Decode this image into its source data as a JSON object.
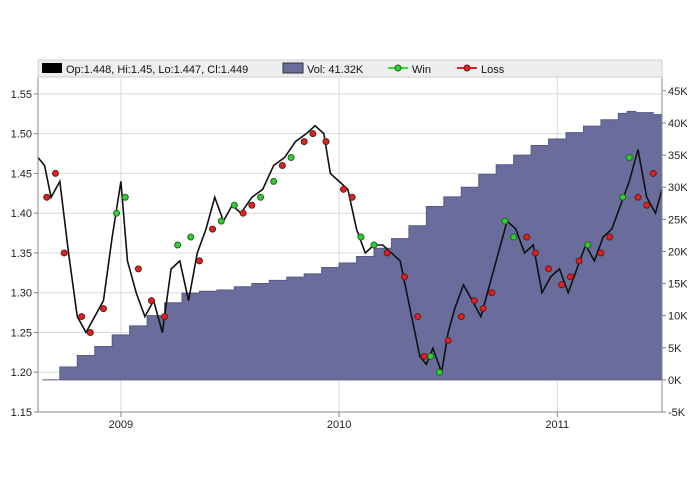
{
  "chart_data": {
    "type": "line",
    "legend": {
      "placement": "top",
      "ohlc_label": "Op:1.448, Hi:1.45, Lo:1.447, Cl:1.449",
      "volume_label": "Vol: 41.32K",
      "win_label": "Win",
      "loss_label": "Loss"
    },
    "x_ticks": [
      "2009",
      "2010",
      "2011"
    ],
    "x_tick_values": [
      2009.0,
      2010.0,
      2011.0
    ],
    "xlim": [
      2008.62,
      2011.48
    ],
    "y_left": {
      "ticks": [
        "1.15",
        "1.20",
        "1.25",
        "1.30",
        "1.35",
        "1.40",
        "1.45",
        "1.50",
        "1.55"
      ],
      "tick_values": [
        1.15,
        1.2,
        1.25,
        1.3,
        1.35,
        1.4,
        1.45,
        1.5,
        1.55
      ],
      "ylim": [
        1.15,
        1.57
      ]
    },
    "y_right": {
      "ticks": [
        "-5K",
        "0K",
        "5K",
        "10K",
        "15K",
        "20K",
        "25K",
        "30K",
        "35K",
        "40K",
        "45K"
      ],
      "tick_values": [
        -5000,
        0,
        5000,
        10000,
        15000,
        20000,
        25000,
        30000,
        35000,
        40000,
        45000
      ],
      "ylim": [
        -5000,
        47000
      ]
    },
    "price": {
      "x": [
        2008.62,
        2008.65,
        2008.68,
        2008.72,
        2008.76,
        2008.8,
        2008.84,
        2008.88,
        2008.92,
        2008.96,
        2009.0,
        2009.03,
        2009.07,
        2009.11,
        2009.15,
        2009.19,
        2009.23,
        2009.27,
        2009.31,
        2009.35,
        2009.39,
        2009.43,
        2009.47,
        2009.51,
        2009.55,
        2009.6,
        2009.65,
        2009.7,
        2009.75,
        2009.8,
        2009.85,
        2009.89,
        2009.93,
        2009.96,
        2010.0,
        2010.04,
        2010.08,
        2010.12,
        2010.16,
        2010.2,
        2010.24,
        2010.28,
        2010.31,
        2010.34,
        2010.37,
        2010.4,
        2010.43,
        2010.47,
        2010.5,
        2010.53,
        2010.57,
        2010.61,
        2010.65,
        2010.69,
        2010.73,
        2010.77,
        2010.81,
        2010.85,
        2010.89,
        2010.93,
        2010.97,
        2011.01,
        2011.05,
        2011.09,
        2011.13,
        2011.17,
        2011.21,
        2011.25,
        2011.29,
        2011.33,
        2011.37,
        2011.41,
        2011.45,
        2011.48
      ],
      "y": [
        1.47,
        1.46,
        1.42,
        1.44,
        1.35,
        1.27,
        1.25,
        1.27,
        1.29,
        1.37,
        1.44,
        1.34,
        1.3,
        1.27,
        1.29,
        1.25,
        1.33,
        1.34,
        1.29,
        1.35,
        1.38,
        1.42,
        1.39,
        1.41,
        1.4,
        1.42,
        1.43,
        1.46,
        1.47,
        1.49,
        1.5,
        1.51,
        1.5,
        1.45,
        1.44,
        1.43,
        1.38,
        1.35,
        1.36,
        1.36,
        1.35,
        1.34,
        1.3,
        1.26,
        1.22,
        1.21,
        1.23,
        1.2,
        1.25,
        1.28,
        1.31,
        1.29,
        1.27,
        1.31,
        1.35,
        1.39,
        1.38,
        1.35,
        1.36,
        1.3,
        1.32,
        1.33,
        1.3,
        1.33,
        1.36,
        1.34,
        1.37,
        1.38,
        1.41,
        1.44,
        1.48,
        1.42,
        1.4,
        1.43
      ]
    },
    "volume": {
      "x": [
        2008.64,
        2008.72,
        2008.8,
        2008.88,
        2008.96,
        2009.04,
        2009.12,
        2009.2,
        2009.28,
        2009.36,
        2009.44,
        2009.52,
        2009.6,
        2009.68,
        2009.76,
        2009.84,
        2009.92,
        2010.0,
        2010.08,
        2010.16,
        2010.24,
        2010.32,
        2010.4,
        2010.48,
        2010.56,
        2010.64,
        2010.72,
        2010.8,
        2010.88,
        2010.96,
        2011.04,
        2011.12,
        2011.2,
        2011.28,
        2011.32,
        2011.36,
        2011.44,
        2011.48
      ],
      "y": [
        0,
        2000,
        3800,
        5200,
        7000,
        8400,
        10000,
        12000,
        13500,
        13800,
        14000,
        14500,
        15000,
        15500,
        16000,
        16500,
        17500,
        18200,
        19200,
        20500,
        22000,
        24000,
        27000,
        28500,
        30000,
        32000,
        33500,
        35000,
        36500,
        37500,
        38500,
        39500,
        40500,
        41500,
        41800,
        41600,
        41300,
        41200
      ]
    },
    "win_markers": {
      "x": [
        2008.98,
        2009.02,
        2009.26,
        2009.32,
        2009.46,
        2009.52,
        2009.64,
        2009.7,
        2009.78,
        2010.1,
        2010.16,
        2010.42,
        2010.46,
        2010.76,
        2010.8,
        2011.14,
        2011.3,
        2011.33
      ],
      "y": [
        1.4,
        1.42,
        1.36,
        1.37,
        1.39,
        1.41,
        1.42,
        1.44,
        1.47,
        1.37,
        1.36,
        1.22,
        1.2,
        1.39,
        1.37,
        1.36,
        1.42,
        1.47
      ]
    },
    "loss_markers": {
      "x": [
        2008.66,
        2008.7,
        2008.74,
        2008.82,
        2008.86,
        2008.92,
        2009.08,
        2009.14,
        2009.2,
        2009.36,
        2009.42,
        2009.56,
        2009.6,
        2009.74,
        2009.84,
        2009.88,
        2009.94,
        2010.02,
        2010.06,
        2010.22,
        2010.3,
        2010.36,
        2010.39,
        2010.5,
        2010.56,
        2010.62,
        2010.66,
        2010.7,
        2010.86,
        2010.9,
        2010.96,
        2011.02,
        2011.06,
        2011.1,
        2011.2,
        2011.24,
        2011.37,
        2011.41,
        2011.44
      ],
      "y": [
        1.42,
        1.45,
        1.35,
        1.27,
        1.25,
        1.28,
        1.33,
        1.29,
        1.27,
        1.34,
        1.38,
        1.4,
        1.41,
        1.46,
        1.49,
        1.5,
        1.49,
        1.43,
        1.42,
        1.35,
        1.32,
        1.27,
        1.22,
        1.24,
        1.27,
        1.29,
        1.28,
        1.3,
        1.37,
        1.35,
        1.33,
        1.31,
        1.32,
        1.34,
        1.35,
        1.37,
        1.42,
        1.41,
        1.45
      ]
    },
    "grid": true,
    "colors": {
      "price": "#111111",
      "win_line": "#33dd33",
      "win_marker": "#33cc33",
      "loss_marker": "#dd2222",
      "volume_fill": "#6a6c9c",
      "volume_edge": "#56588a",
      "grid": "#d8d8d8",
      "legend_bg": "#eeeeee",
      "axis": "#888888"
    }
  }
}
